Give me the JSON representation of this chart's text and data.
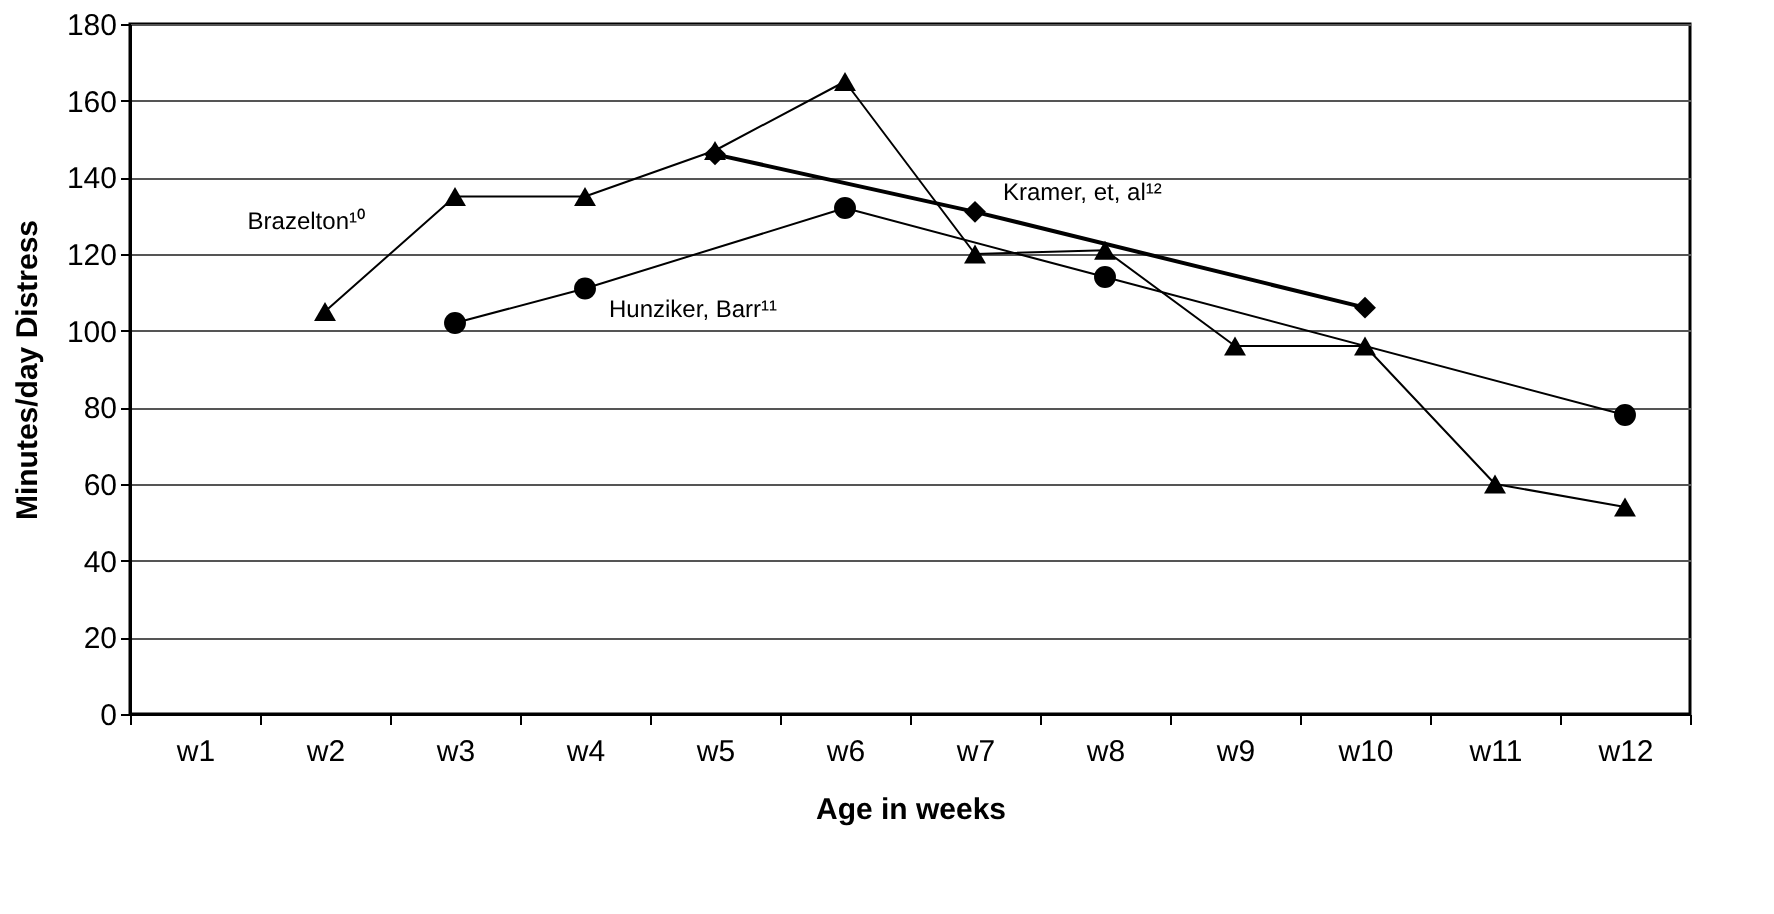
{
  "chart_data": {
    "type": "line",
    "xlabel": "Age in weeks",
    "ylabel": "Minutes/day Distress",
    "categories": [
      "w1",
      "w2",
      "w3",
      "w4",
      "w5",
      "w6",
      "w7",
      "w8",
      "w9",
      "w10",
      "w11",
      "w12"
    ],
    "ylim": [
      0,
      180
    ],
    "yticks": [
      0,
      20,
      40,
      60,
      80,
      100,
      120,
      140,
      160,
      180
    ],
    "grid": "y",
    "series": [
      {
        "name": "Brazelton¹⁰",
        "color": "#000000",
        "marker": "triangle",
        "x": [
          "w2",
          "w3",
          "w4",
          "w5",
          "w6",
          "w7",
          "w8",
          "w9",
          "w10",
          "w11",
          "w12"
        ],
        "values": [
          105,
          135,
          135,
          147,
          165,
          120,
          121,
          96,
          96,
          60,
          54
        ]
      },
      {
        "name": "Hunziker, Barr¹¹",
        "color": "#000000",
        "marker": "circle",
        "x": [
          "w3",
          "w4",
          "w6",
          "w8",
          "w12"
        ],
        "values": [
          102,
          111,
          132,
          114,
          78
        ]
      },
      {
        "name": "Kramer, et, al¹²",
        "color": "#000000",
        "marker": "diamond",
        "x": [
          "w5",
          "w7",
          "w10"
        ],
        "values": [
          146,
          131,
          106
        ]
      }
    ]
  }
}
